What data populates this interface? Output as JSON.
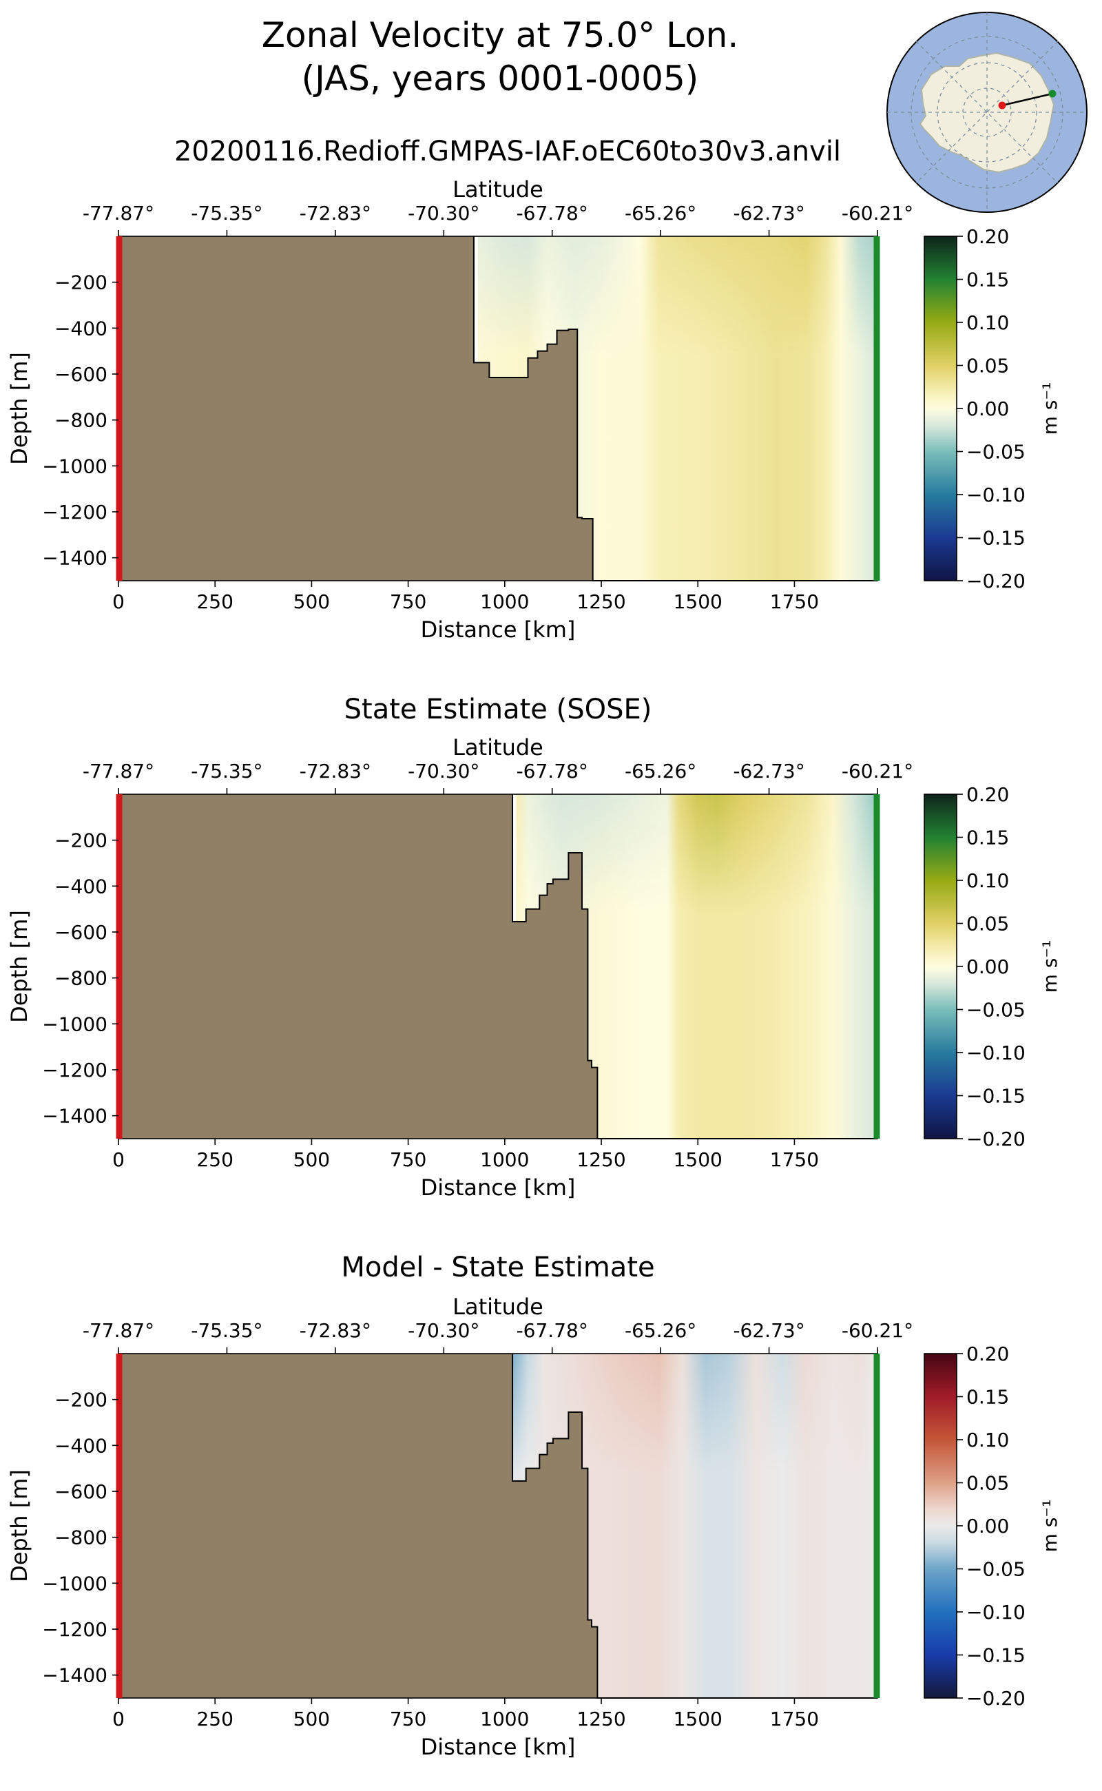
{
  "figure": {
    "title_line1": "Zonal Velocity at 75.0° Lon.",
    "title_line2": "(JAS, years 0001-0005)",
    "run_name": "20200116.Redioff.GMPAS-IAF.oEC60to30v3.anvil"
  },
  "colors": {
    "land": "#8f8066",
    "section_start": "#d0181c",
    "section_end": "#1a8a2a",
    "ocean_map": "#9bb5df",
    "antarctica_map": "#f1eedd"
  },
  "chart_data": [
    {
      "type": "heatmap",
      "title": "",
      "xlabel": "Distance [km]",
      "ylabel": "Depth [m]",
      "top_axis_label": "Latitude",
      "xlim": [
        0,
        1965
      ],
      "ylim": [
        -1500,
        0
      ],
      "x_ticks": [
        0,
        250,
        500,
        750,
        1000,
        1250,
        1500,
        1750
      ],
      "y_ticks": [
        -200,
        -400,
        -600,
        -800,
        -1000,
        -1200,
        -1400
      ],
      "latitude_ticks": [
        "-77.87°",
        "-75.35°",
        "-72.83°",
        "-70.30°",
        "-67.78°",
        "-65.26°",
        "-62.73°",
        "-60.21°"
      ],
      "colormap": "velocity",
      "colorbar_label": "m s⁻¹",
      "colorbar_range": [
        -0.2,
        0.2
      ],
      "colorbar_ticks": [
        0.2,
        0.15,
        0.1,
        0.05,
        0.0,
        -0.05,
        -0.1,
        -0.15,
        -0.2
      ],
      "bathymetry": {
        "distance_km": [
          0,
          920,
          920,
          960,
          960,
          1060,
          1060,
          1085,
          1085,
          1110,
          1110,
          1135,
          1135,
          1165,
          1165,
          1188,
          1188,
          1200,
          1200,
          1228,
          1228,
          1965
        ],
        "depth_m": [
          0,
          0,
          -550,
          -550,
          -615,
          -615,
          -530,
          -530,
          -500,
          -500,
          -470,
          -470,
          -410,
          -410,
          -405,
          -405,
          -1225,
          -1225,
          -1230,
          -1230,
          -1500,
          -1500
        ]
      },
      "velocity_columns": {
        "distance_km": [
          930,
          1000,
          1060,
          1110,
          1180,
          1250,
          1350,
          1400,
          1500,
          1600,
          1700,
          1780,
          1830,
          1870,
          1920,
          1960
        ],
        "surface_m_s": [
          -0.012,
          -0.018,
          -0.02,
          -0.01,
          -0.015,
          -0.012,
          0.0,
          0.03,
          0.035,
          0.038,
          0.04,
          0.045,
          0.03,
          0.005,
          -0.03,
          -0.035
        ],
        "bottom_m_s": [
          0.005,
          0.008,
          0.01,
          0.0,
          -0.005,
          0.003,
          0.005,
          0.018,
          0.02,
          0.025,
          0.032,
          0.03,
          0.02,
          0.003,
          -0.01,
          -0.02
        ]
      }
    },
    {
      "type": "heatmap",
      "title": "State Estimate (SOSE)",
      "xlabel": "Distance [km]",
      "ylabel": "Depth [m]",
      "top_axis_label": "Latitude",
      "xlim": [
        0,
        1965
      ],
      "ylim": [
        -1500,
        0
      ],
      "x_ticks": [
        0,
        250,
        500,
        750,
        1000,
        1250,
        1500,
        1750
      ],
      "y_ticks": [
        -200,
        -400,
        -600,
        -800,
        -1000,
        -1200,
        -1400
      ],
      "latitude_ticks": [
        "-77.87°",
        "-75.35°",
        "-72.83°",
        "-70.30°",
        "-67.78°",
        "-65.26°",
        "-62.73°",
        "-60.21°"
      ],
      "colormap": "velocity",
      "colorbar_label": "m s⁻¹",
      "colorbar_range": [
        -0.2,
        0.2
      ],
      "colorbar_ticks": [
        0.2,
        0.15,
        0.1,
        0.05,
        0.0,
        -0.05,
        -0.1,
        -0.15,
        -0.2
      ],
      "bathymetry": {
        "distance_km": [
          0,
          1020,
          1020,
          1055,
          1055,
          1090,
          1090,
          1110,
          1110,
          1125,
          1125,
          1165,
          1165,
          1200,
          1200,
          1215,
          1215,
          1225,
          1225,
          1240,
          1240,
          1965
        ],
        "depth_m": [
          0,
          0,
          -555,
          -555,
          -500,
          -500,
          -440,
          -440,
          -390,
          -390,
          -370,
          -370,
          -255,
          -255,
          -500,
          -500,
          -1160,
          -1160,
          -1190,
          -1190,
          -1500,
          -1500
        ]
      },
      "velocity_columns": {
        "distance_km": [
          1030,
          1060,
          1100,
          1150,
          1250,
          1350,
          1420,
          1450,
          1500,
          1550,
          1620,
          1700,
          1780,
          1850,
          1900,
          1960
        ],
        "surface_m_s": [
          0.02,
          -0.01,
          -0.015,
          -0.02,
          -0.018,
          -0.012,
          -0.008,
          0.04,
          0.06,
          0.065,
          0.05,
          0.04,
          0.03,
          0.01,
          -0.02,
          -0.04
        ],
        "bottom_m_s": [
          0.01,
          0.0,
          -0.005,
          -0.008,
          0.005,
          0.0,
          0.0,
          0.02,
          0.025,
          0.025,
          0.025,
          0.022,
          0.015,
          0.005,
          -0.01,
          -0.02
        ]
      }
    },
    {
      "type": "heatmap",
      "title": "Model - State Estimate",
      "xlabel": "Distance [km]",
      "ylabel": "Depth [m]",
      "top_axis_label": "Latitude",
      "xlim": [
        0,
        1965
      ],
      "ylim": [
        -1500,
        0
      ],
      "x_ticks": [
        0,
        250,
        500,
        750,
        1000,
        1250,
        1500,
        1750
      ],
      "y_ticks": [
        -200,
        -400,
        -600,
        -800,
        -1000,
        -1200,
        -1400
      ],
      "latitude_ticks": [
        "-77.87°",
        "-75.35°",
        "-72.83°",
        "-70.30°",
        "-67.78°",
        "-65.26°",
        "-62.73°",
        "-60.21°"
      ],
      "colormap": "difference",
      "colorbar_label": "m s⁻¹",
      "colorbar_range": [
        -0.2,
        0.2
      ],
      "colorbar_ticks": [
        0.2,
        0.15,
        0.1,
        0.05,
        0.0,
        -0.05,
        -0.1,
        -0.15,
        -0.2
      ],
      "bathymetry": {
        "distance_km": [
          0,
          1020,
          1020,
          1055,
          1055,
          1090,
          1090,
          1110,
          1110,
          1125,
          1125,
          1165,
          1165,
          1200,
          1200,
          1215,
          1215,
          1225,
          1225,
          1240,
          1240,
          1965
        ],
        "depth_m": [
          0,
          0,
          -555,
          -555,
          -500,
          -500,
          -440,
          -440,
          -390,
          -390,
          -370,
          -370,
          -255,
          -255,
          -500,
          -500,
          -1160,
          -1160,
          -1190,
          -1190,
          -1500,
          -1500
        ]
      },
      "velocity_columns": {
        "distance_km": [
          1020,
          1060,
          1100,
          1200,
          1300,
          1400,
          1460,
          1520,
          1580,
          1650,
          1720,
          1780,
          1850,
          1920,
          1960
        ],
        "surface_m_s": [
          -0.045,
          -0.02,
          0.005,
          0.015,
          0.025,
          0.03,
          0.01,
          -0.03,
          -0.025,
          0.01,
          -0.015,
          0.015,
          0.005,
          0.01,
          0.0
        ],
        "bottom_m_s": [
          -0.005,
          0.0,
          0.005,
          0.01,
          0.012,
          0.015,
          0.005,
          -0.01,
          -0.01,
          0.006,
          0.0,
          0.008,
          0.004,
          0.005,
          0.0
        ]
      }
    }
  ]
}
